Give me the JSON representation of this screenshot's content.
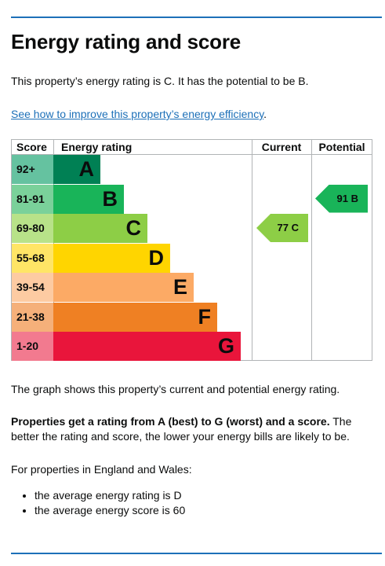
{
  "heading": "Energy rating and score",
  "intro": "This property’s energy rating is C. It has the potential to be B.",
  "improve_link": "See how to improve this property’s energy efficiency",
  "improve_link_suffix": ".",
  "chart": {
    "headers": {
      "score": "Score",
      "rating": "Energy rating",
      "current": "Current",
      "potential": "Potential"
    },
    "bands": [
      {
        "score": "92+",
        "letter": "A",
        "bar_color": "#008054",
        "score_color": "#65c2a0",
        "bar_fraction": 0.25
      },
      {
        "score": "81-91",
        "letter": "B",
        "bar_color": "#19b459",
        "score_color": "#7ad19a",
        "bar_fraction": 0.375
      },
      {
        "score": "69-80",
        "letter": "C",
        "bar_color": "#8dce46",
        "score_color": "#b8e289",
        "bar_fraction": 0.5
      },
      {
        "score": "55-68",
        "letter": "D",
        "bar_color": "#ffd500",
        "score_color": "#ffe566",
        "bar_fraction": 0.625
      },
      {
        "score": "39-54",
        "letter": "E",
        "bar_color": "#fcaa65",
        "score_color": "#fdcba2",
        "bar_fraction": 0.75
      },
      {
        "score": "21-38",
        "letter": "F",
        "bar_color": "#ef8023",
        "score_color": "#f5b07a",
        "bar_fraction": 0.875
      },
      {
        "score": "1-20",
        "letter": "G",
        "bar_color": "#e9153b",
        "score_color": "#f27a8f",
        "bar_fraction": 1.0
      }
    ],
    "current": {
      "label": "77 C",
      "band": "C",
      "color": "#8dce46"
    },
    "potential": {
      "label": "91 B",
      "band": "B",
      "color": "#19b459"
    }
  },
  "graph_note": "The graph shows this property’s current and potential energy rating.",
  "ratings_bold": "Properties get a rating from A (best) to G (worst) and a score.",
  "ratings_rest": " The better the rating and score, the lower your energy bills are likely to be.",
  "region_note": "For properties in England and Wales:",
  "averages": [
    "the average energy rating is D",
    "the average energy score is 60"
  ]
}
